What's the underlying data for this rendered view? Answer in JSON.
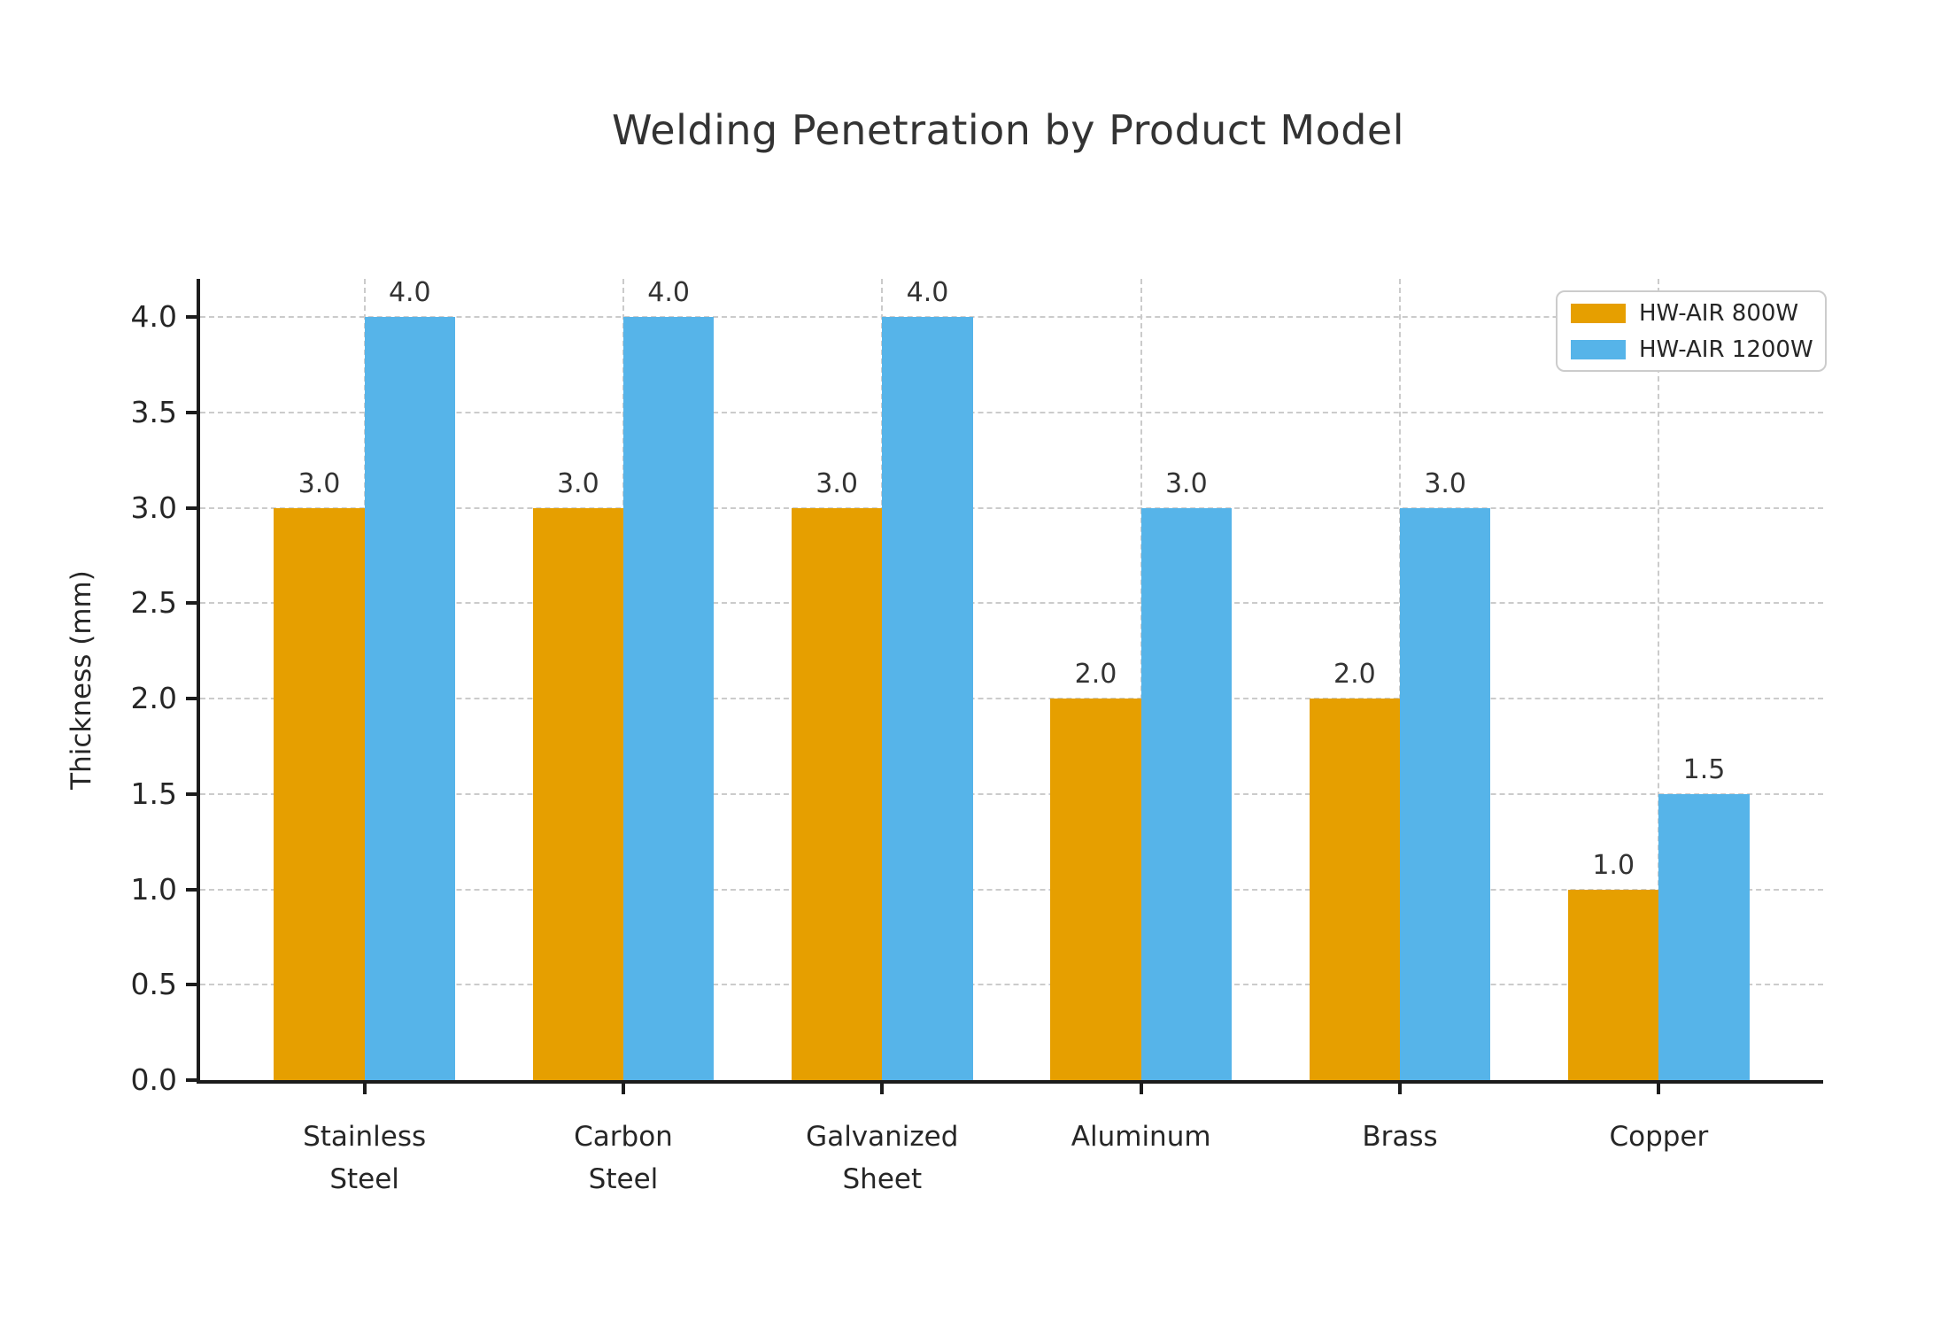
{
  "chart_data": {
    "type": "bar",
    "title": "Welding Penetration by Product Model",
    "xlabel": "",
    "ylabel": "Thickness (mm)",
    "categories": [
      "Stainless\nSteel",
      "Carbon\nSteel",
      "Galvanized\nSheet",
      "Aluminum",
      "Brass",
      "Copper"
    ],
    "series": [
      {
        "name": "HW-AIR 800W",
        "color": "#E69F00",
        "values": [
          3.0,
          3.0,
          3.0,
          2.0,
          2.0,
          1.0
        ]
      },
      {
        "name": "HW-AIR 1200W",
        "color": "#56B4E9",
        "values": [
          4.0,
          4.0,
          4.0,
          3.0,
          3.0,
          1.5
        ]
      }
    ],
    "ylim": [
      0,
      4.2
    ],
    "xlim": [
      -0.635,
      5.635
    ],
    "yticks": [
      0.0,
      0.5,
      1.0,
      1.5,
      2.0,
      2.5,
      3.0,
      3.5,
      4.0
    ],
    "bar_width": 0.35,
    "grid": true,
    "grid_style": "dashed",
    "bar_labels": true,
    "legend_position": "upper right"
  },
  "colors": {
    "axis": "#1c1c1c",
    "grid": "#cbcbcb",
    "title_text": "#333333",
    "tick_text": "#262626",
    "background": "#ffffff"
  }
}
